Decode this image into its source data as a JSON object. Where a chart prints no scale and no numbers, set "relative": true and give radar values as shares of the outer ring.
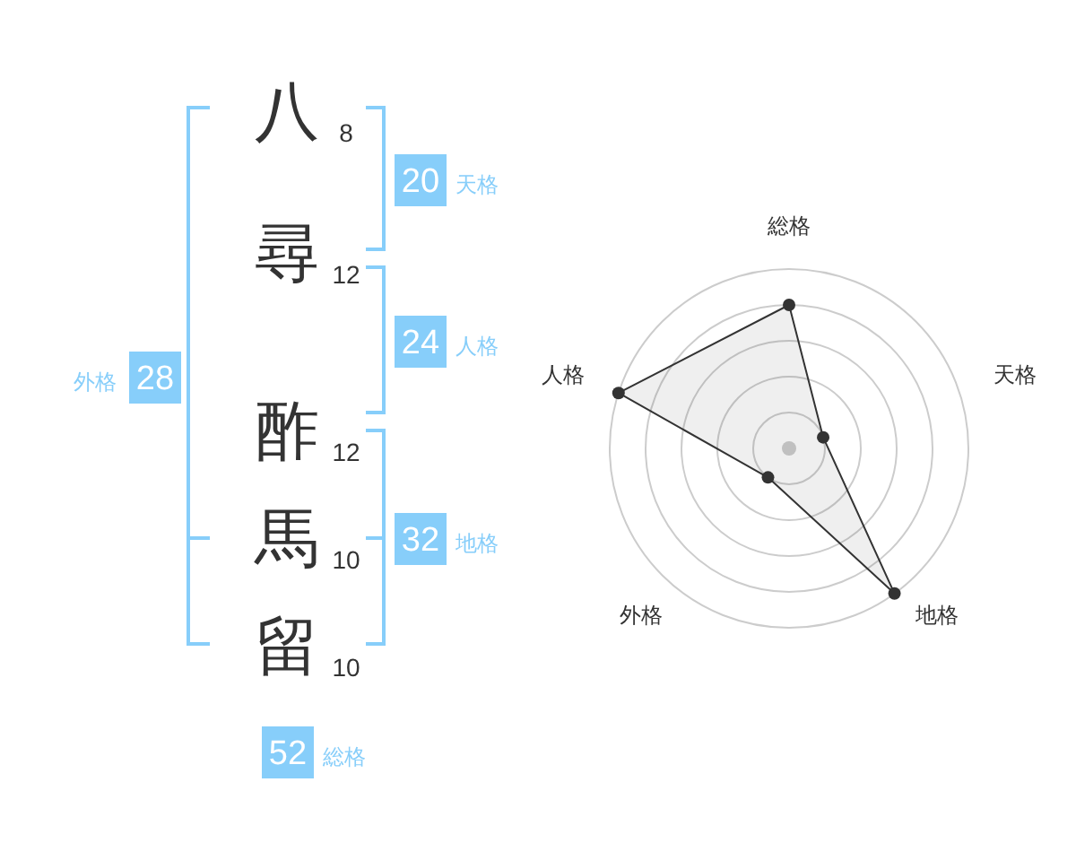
{
  "chart_data": [
    {
      "type": "other",
      "categories": [
        "八",
        "尋",
        "酢",
        "馬",
        "留"
      ],
      "values": [
        8,
        12,
        12,
        10,
        10
      ],
      "data_labels": true,
      "annotations": [
        "20",
        "天格",
        "24",
        "人格",
        "32",
        "地格",
        "28",
        "外格",
        "52",
        "総格"
      ]
    },
    {
      "type": "radar",
      "categories": [
        "総格",
        "天格",
        "地格",
        "外格",
        "人格"
      ],
      "relative": true,
      "series": [
        {
          "color": "#333333",
          "values": [
            0.8,
            0.2,
            1,
            0.2,
            1
          ]
        }
      ],
      "grid": true,
      "marker": "circle"
    }
  ]
}
